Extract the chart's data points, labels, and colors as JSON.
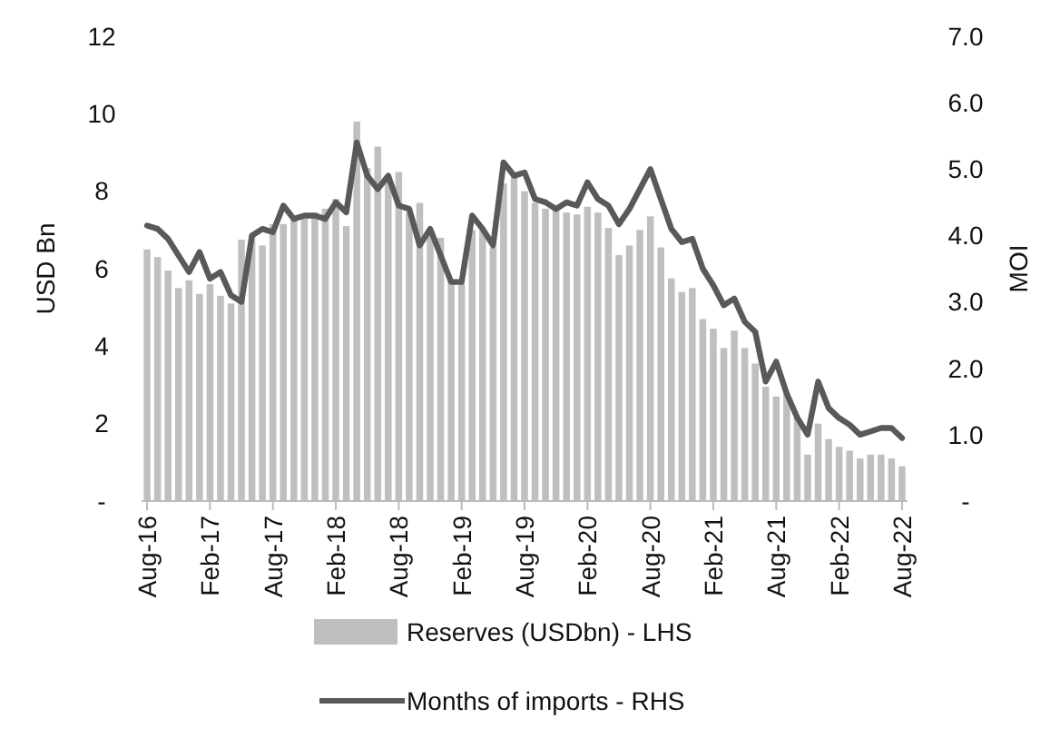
{
  "chart_data": {
    "type": "bar",
    "ylabel": "USD Bn",
    "y2label": "MOI",
    "categories": [
      "Aug-16",
      null,
      null,
      null,
      null,
      null,
      "Feb-17",
      null,
      null,
      null,
      null,
      null,
      "Aug-17",
      null,
      null,
      null,
      null,
      null,
      "Feb-18",
      null,
      null,
      null,
      null,
      null,
      "Aug-18",
      null,
      null,
      null,
      null,
      null,
      "Feb-19",
      null,
      null,
      null,
      null,
      null,
      "Aug-19",
      null,
      null,
      null,
      null,
      null,
      "Feb-20",
      null,
      null,
      null,
      null,
      null,
      "Aug-20",
      null,
      null,
      null,
      null,
      null,
      "Feb-21",
      null,
      null,
      null,
      null,
      null,
      "Aug-21",
      null,
      null,
      null,
      null,
      null,
      "Feb-22",
      null,
      null,
      null,
      null,
      null,
      "Aug-22"
    ],
    "series": [
      {
        "name": "Reserves (USDbn) - LHS",
        "color": "#bfbfbf",
        "values": [
          6.5,
          6.3,
          5.95,
          5.5,
          5.7,
          5.35,
          5.6,
          5.3,
          5.1,
          6.75,
          6.85,
          6.6,
          7.15,
          7.15,
          7.25,
          7.3,
          7.45,
          7.55,
          7.8,
          7.1,
          9.8,
          8.6,
          9.15,
          8.3,
          8.5,
          7.45,
          7.7,
          6.9,
          6.8,
          5.7,
          5.6,
          7.0,
          7.0,
          6.55,
          8.2,
          8.4,
          8.0,
          7.7,
          7.55,
          7.55,
          7.45,
          7.4,
          7.6,
          7.45,
          7.05,
          6.35,
          6.6,
          7.0,
          7.35,
          6.55,
          5.75,
          5.4,
          5.5,
          4.7,
          4.45,
          3.95,
          4.4,
          3.95,
          3.55,
          2.95,
          2.7,
          2.8,
          2.15,
          1.2,
          2.0,
          1.6,
          1.4,
          1.3,
          1.1,
          1.2,
          1.2,
          1.1,
          0.9
        ]
      },
      {
        "name": "Months of imports - RHS",
        "type": "line",
        "axis": "y2",
        "color": "#595959",
        "values": [
          4.15,
          4.1,
          3.95,
          3.7,
          3.45,
          3.75,
          3.35,
          3.45,
          3.1,
          3.0,
          4.0,
          4.1,
          4.05,
          4.45,
          4.25,
          4.3,
          4.3,
          4.25,
          4.5,
          4.35,
          5.4,
          4.9,
          4.7,
          4.9,
          4.45,
          4.4,
          3.85,
          4.1,
          3.7,
          3.3,
          3.3,
          4.3,
          4.1,
          3.85,
          5.1,
          4.9,
          4.95,
          4.55,
          4.5,
          4.4,
          4.5,
          4.45,
          4.8,
          4.55,
          4.45,
          4.17,
          4.4,
          4.7,
          5.0,
          4.55,
          4.1,
          3.9,
          3.95,
          3.5,
          3.25,
          2.95,
          3.05,
          2.7,
          2.55,
          1.8,
          2.1,
          1.62,
          1.26,
          1.0,
          1.8,
          1.4,
          1.25,
          1.15,
          1.0,
          1.05,
          1.1,
          1.1,
          0.95
        ]
      }
    ],
    "ylim": [
      0,
      12
    ],
    "yticks": [
      {
        "value": 0,
        "label": "-"
      },
      2,
      4,
      6,
      8,
      10,
      12
    ],
    "y2lim": [
      0,
      7
    ],
    "y2ticks": [
      {
        "value": 0,
        "label": "-"
      },
      {
        "value": 1,
        "label": "1.0"
      },
      {
        "value": 2,
        "label": "2.0"
      },
      {
        "value": 3,
        "label": "3.0"
      },
      {
        "value": 4,
        "label": "4.0"
      },
      {
        "value": 5,
        "label": "5.0"
      },
      {
        "value": 6,
        "label": "6.0"
      },
      {
        "value": 7,
        "label": "7.0"
      }
    ],
    "legend": "bottom",
    "grid": false
  }
}
